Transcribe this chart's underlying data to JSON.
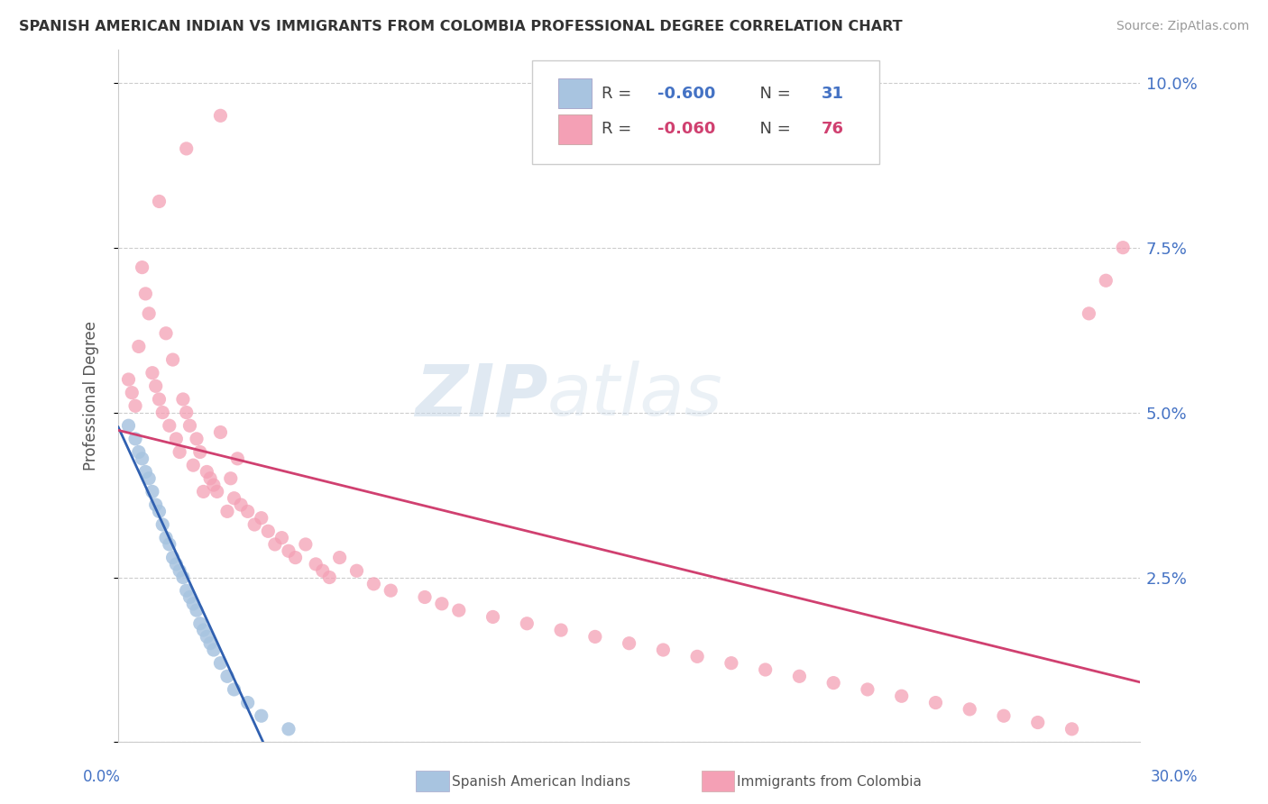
{
  "title": "SPANISH AMERICAN INDIAN VS IMMIGRANTS FROM COLOMBIA PROFESSIONAL DEGREE CORRELATION CHART",
  "source": "Source: ZipAtlas.com",
  "ylabel": "Professional Degree",
  "legend_label1": "Spanish American Indians",
  "legend_label2": "Immigrants from Colombia",
  "R1": -0.6,
  "N1": 31,
  "R2": -0.06,
  "N2": 76,
  "color1": "#a8c4e0",
  "color2": "#f4a0b5",
  "trendline1_color": "#3060b0",
  "trendline2_color": "#d04070",
  "xlim": [
    0.0,
    0.3
  ],
  "ylim": [
    0.0,
    0.105
  ],
  "ytick_vals": [
    0.0,
    0.025,
    0.05,
    0.075,
    0.1
  ],
  "ytick_labels": [
    "",
    "2.5%",
    "5.0%",
    "7.5%",
    "10.0%"
  ],
  "watermark_zip": "ZIP",
  "watermark_atlas": "atlas",
  "blue_dots_x": [
    0.003,
    0.005,
    0.006,
    0.007,
    0.008,
    0.009,
    0.01,
    0.011,
    0.012,
    0.013,
    0.014,
    0.015,
    0.016,
    0.017,
    0.018,
    0.019,
    0.02,
    0.021,
    0.022,
    0.023,
    0.024,
    0.025,
    0.026,
    0.027,
    0.028,
    0.03,
    0.032,
    0.034,
    0.038,
    0.042,
    0.05
  ],
  "blue_dots_y": [
    0.048,
    0.046,
    0.044,
    0.043,
    0.041,
    0.04,
    0.038,
    0.036,
    0.035,
    0.033,
    0.031,
    0.03,
    0.028,
    0.027,
    0.026,
    0.025,
    0.023,
    0.022,
    0.021,
    0.02,
    0.018,
    0.017,
    0.016,
    0.015,
    0.014,
    0.012,
    0.01,
    0.008,
    0.006,
    0.004,
    0.002
  ],
  "pink_dots_x": [
    0.003,
    0.004,
    0.005,
    0.006,
    0.007,
    0.008,
    0.009,
    0.01,
    0.011,
    0.012,
    0.013,
    0.014,
    0.015,
    0.016,
    0.017,
    0.018,
    0.019,
    0.02,
    0.021,
    0.022,
    0.023,
    0.024,
    0.025,
    0.026,
    0.027,
    0.028,
    0.029,
    0.03,
    0.032,
    0.033,
    0.034,
    0.035,
    0.036,
    0.038,
    0.04,
    0.042,
    0.044,
    0.046,
    0.048,
    0.05,
    0.052,
    0.055,
    0.058,
    0.06,
    0.062,
    0.065,
    0.07,
    0.075,
    0.08,
    0.09,
    0.095,
    0.1,
    0.11,
    0.12,
    0.13,
    0.14,
    0.15,
    0.16,
    0.17,
    0.18,
    0.19,
    0.2,
    0.21,
    0.22,
    0.23,
    0.24,
    0.25,
    0.26,
    0.27,
    0.28,
    0.285,
    0.29,
    0.295,
    0.012,
    0.02,
    0.03
  ],
  "pink_dots_y": [
    0.055,
    0.053,
    0.051,
    0.06,
    0.072,
    0.068,
    0.065,
    0.056,
    0.054,
    0.052,
    0.05,
    0.062,
    0.048,
    0.058,
    0.046,
    0.044,
    0.052,
    0.05,
    0.048,
    0.042,
    0.046,
    0.044,
    0.038,
    0.041,
    0.04,
    0.039,
    0.038,
    0.047,
    0.035,
    0.04,
    0.037,
    0.043,
    0.036,
    0.035,
    0.033,
    0.034,
    0.032,
    0.03,
    0.031,
    0.029,
    0.028,
    0.03,
    0.027,
    0.026,
    0.025,
    0.028,
    0.026,
    0.024,
    0.023,
    0.022,
    0.021,
    0.02,
    0.019,
    0.018,
    0.017,
    0.016,
    0.015,
    0.014,
    0.013,
    0.012,
    0.011,
    0.01,
    0.009,
    0.008,
    0.007,
    0.006,
    0.005,
    0.004,
    0.003,
    0.002,
    0.065,
    0.07,
    0.075,
    0.082,
    0.09,
    0.095
  ]
}
